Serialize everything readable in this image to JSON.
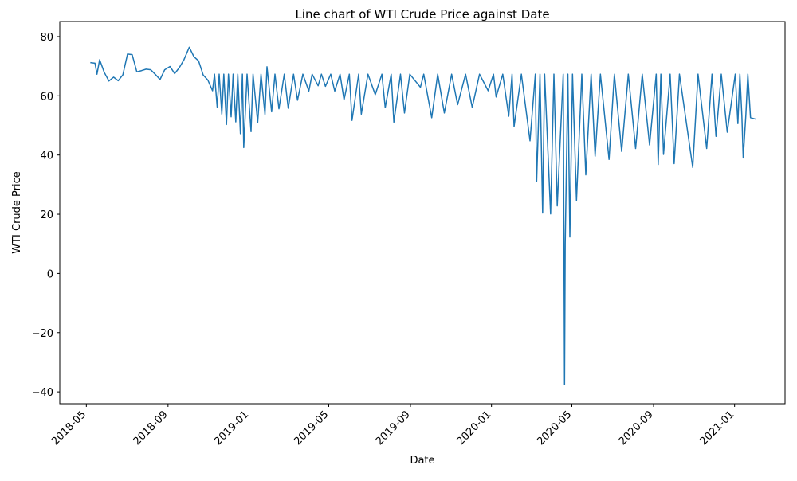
{
  "chart_data": {
    "type": "line",
    "title": "Line chart of WTI Crude Price against Date",
    "x_label": "Date",
    "y_label": "WTI Crude Price",
    "x": [
      "2018-05-07",
      "2018-05-14",
      "2018-05-17",
      "2018-05-21",
      "2018-05-28",
      "2018-06-04",
      "2018-06-11",
      "2018-06-18",
      "2018-06-25",
      "2018-07-02",
      "2018-07-09",
      "2018-07-16",
      "2018-07-23",
      "2018-07-30",
      "2018-08-06",
      "2018-08-13",
      "2018-08-20",
      "2018-08-27",
      "2018-09-04",
      "2018-09-11",
      "2018-09-18",
      "2018-09-25",
      "2018-10-03",
      "2018-10-10",
      "2018-10-17",
      "2018-10-24",
      "2018-10-31",
      "2018-11-07",
      "2018-11-10",
      "2018-11-14",
      "2018-11-17",
      "2018-11-21",
      "2018-11-24",
      "2018-11-28",
      "2018-12-01",
      "2018-12-05",
      "2018-12-08",
      "2018-12-12",
      "2018-12-15",
      "2018-12-19",
      "2018-12-22",
      "2018-12-24",
      "2018-12-29",
      "2019-01-04",
      "2019-01-07",
      "2019-01-14",
      "2019-01-19",
      "2019-01-25",
      "2019-01-28",
      "2019-02-04",
      "2019-02-09",
      "2019-02-15",
      "2019-02-23",
      "2019-03-01",
      "2019-03-09",
      "2019-03-15",
      "2019-03-23",
      "2019-04-01",
      "2019-04-06",
      "2019-04-15",
      "2019-04-20",
      "2019-04-26",
      "2019-05-04",
      "2019-05-10",
      "2019-05-18",
      "2019-05-24",
      "2019-06-01",
      "2019-06-05",
      "2019-06-15",
      "2019-06-19",
      "2019-06-29",
      "2019-07-10",
      "2019-07-20",
      "2019-07-25",
      "2019-08-03",
      "2019-08-07",
      "2019-08-17",
      "2019-08-23",
      "2019-08-31",
      "2019-09-16",
      "2019-09-21",
      "2019-10-03",
      "2019-10-12",
      "2019-10-22",
      "2019-11-02",
      "2019-11-11",
      "2019-11-23",
      "2019-12-03",
      "2019-12-14",
      "2019-12-27",
      "2020-01-04",
      "2020-01-08",
      "2020-01-18",
      "2020-01-27",
      "2020-02-01",
      "2020-02-04",
      "2020-02-15",
      "2020-02-28",
      "2020-03-07",
      "2020-03-09",
      "2020-03-14",
      "2020-03-18",
      "2020-03-21",
      "2020-03-30",
      "2020-04-04",
      "2020-04-09",
      "2020-04-18",
      "2020-04-20",
      "2020-04-21",
      "2020-04-25",
      "2020-04-28",
      "2020-05-02",
      "2020-05-08",
      "2020-05-16",
      "2020-05-22",
      "2020-05-30",
      "2020-06-05",
      "2020-06-13",
      "2020-06-26",
      "2020-07-04",
      "2020-07-15",
      "2020-07-25",
      "2020-08-05",
      "2020-08-15",
      "2020-08-26",
      "2020-09-05",
      "2020-09-08",
      "2020-09-12",
      "2020-09-16",
      "2020-09-26",
      "2020-10-02",
      "2020-10-10",
      "2020-10-30",
      "2020-11-07",
      "2020-11-20",
      "2020-11-28",
      "2020-12-04",
      "2020-12-12",
      "2020-12-21",
      "2021-01-02",
      "2021-01-06",
      "2021-01-09",
      "2021-01-12",
      "2021-01-14",
      "2021-01-18",
      "2021-01-21",
      "2021-01-25",
      "2021-02-02"
    ],
    "series": [
      {
        "name": "WTI Crude Price",
        "color": "#1f77b4",
        "values": [
          71.2,
          71.0,
          67.3,
          72.2,
          67.9,
          65.0,
          66.3,
          65.1,
          67.1,
          74.1,
          73.9,
          68.1,
          68.5,
          69.0,
          68.8,
          67.2,
          65.5,
          68.8,
          69.9,
          67.5,
          69.5,
          72.2,
          76.4,
          73.2,
          71.8,
          67.0,
          65.3,
          61.7,
          67.3,
          56.2,
          67.3,
          53.8,
          67.3,
          50.3,
          67.3,
          52.9,
          67.3,
          51.2,
          67.3,
          47.2,
          67.3,
          42.5,
          67.3,
          47.9,
          67.3,
          51.0,
          67.3,
          53.7,
          69.8,
          54.6,
          67.3,
          55.6,
          67.3,
          55.8,
          67.3,
          58.5,
          67.3,
          61.6,
          67.3,
          63.4,
          67.3,
          63.2,
          67.3,
          61.6,
          67.3,
          58.6,
          67.3,
          51.7,
          67.3,
          53.8,
          67.3,
          60.4,
          67.3,
          56.0,
          67.3,
          51.1,
          67.3,
          54.2,
          67.3,
          62.9,
          67.3,
          52.6,
          67.3,
          54.2,
          67.3,
          57.0,
          67.3,
          56.1,
          67.3,
          61.7,
          67.3,
          59.6,
          67.3,
          53.1,
          67.3,
          49.6,
          67.3,
          44.8,
          67.3,
          31.1,
          67.3,
          20.4,
          67.3,
          20.1,
          67.3,
          22.8,
          67.3,
          -37.6,
          10.0,
          67.3,
          12.3,
          67.3,
          24.7,
          67.3,
          33.3,
          67.3,
          39.6,
          67.3,
          38.5,
          67.3,
          41.2,
          67.3,
          42.2,
          67.3,
          43.4,
          67.3,
          36.8,
          67.3,
          40.2,
          67.3,
          37.1,
          67.3,
          35.8,
          67.3,
          42.2,
          67.3,
          46.3,
          67.3,
          47.7,
          67.3,
          50.6,
          67.3,
          53.2,
          39.0,
          53.5,
          67.3,
          52.6,
          52.1
        ]
      }
    ],
    "xlim": [
      "2018-03-22",
      "2021-03-18"
    ],
    "xticks": [
      "2018-05",
      "2018-09",
      "2019-01",
      "2019-05",
      "2019-09",
      "2020-01",
      "2020-05",
      "2020-09",
      "2021-01"
    ],
    "ylim": [
      -44,
      85.1
    ],
    "yticks": [
      80,
      60,
      40,
      20,
      0,
      {
        "value": -20,
        "label": "−20"
      },
      {
        "value": -40,
        "label": "−40"
      }
    ]
  }
}
